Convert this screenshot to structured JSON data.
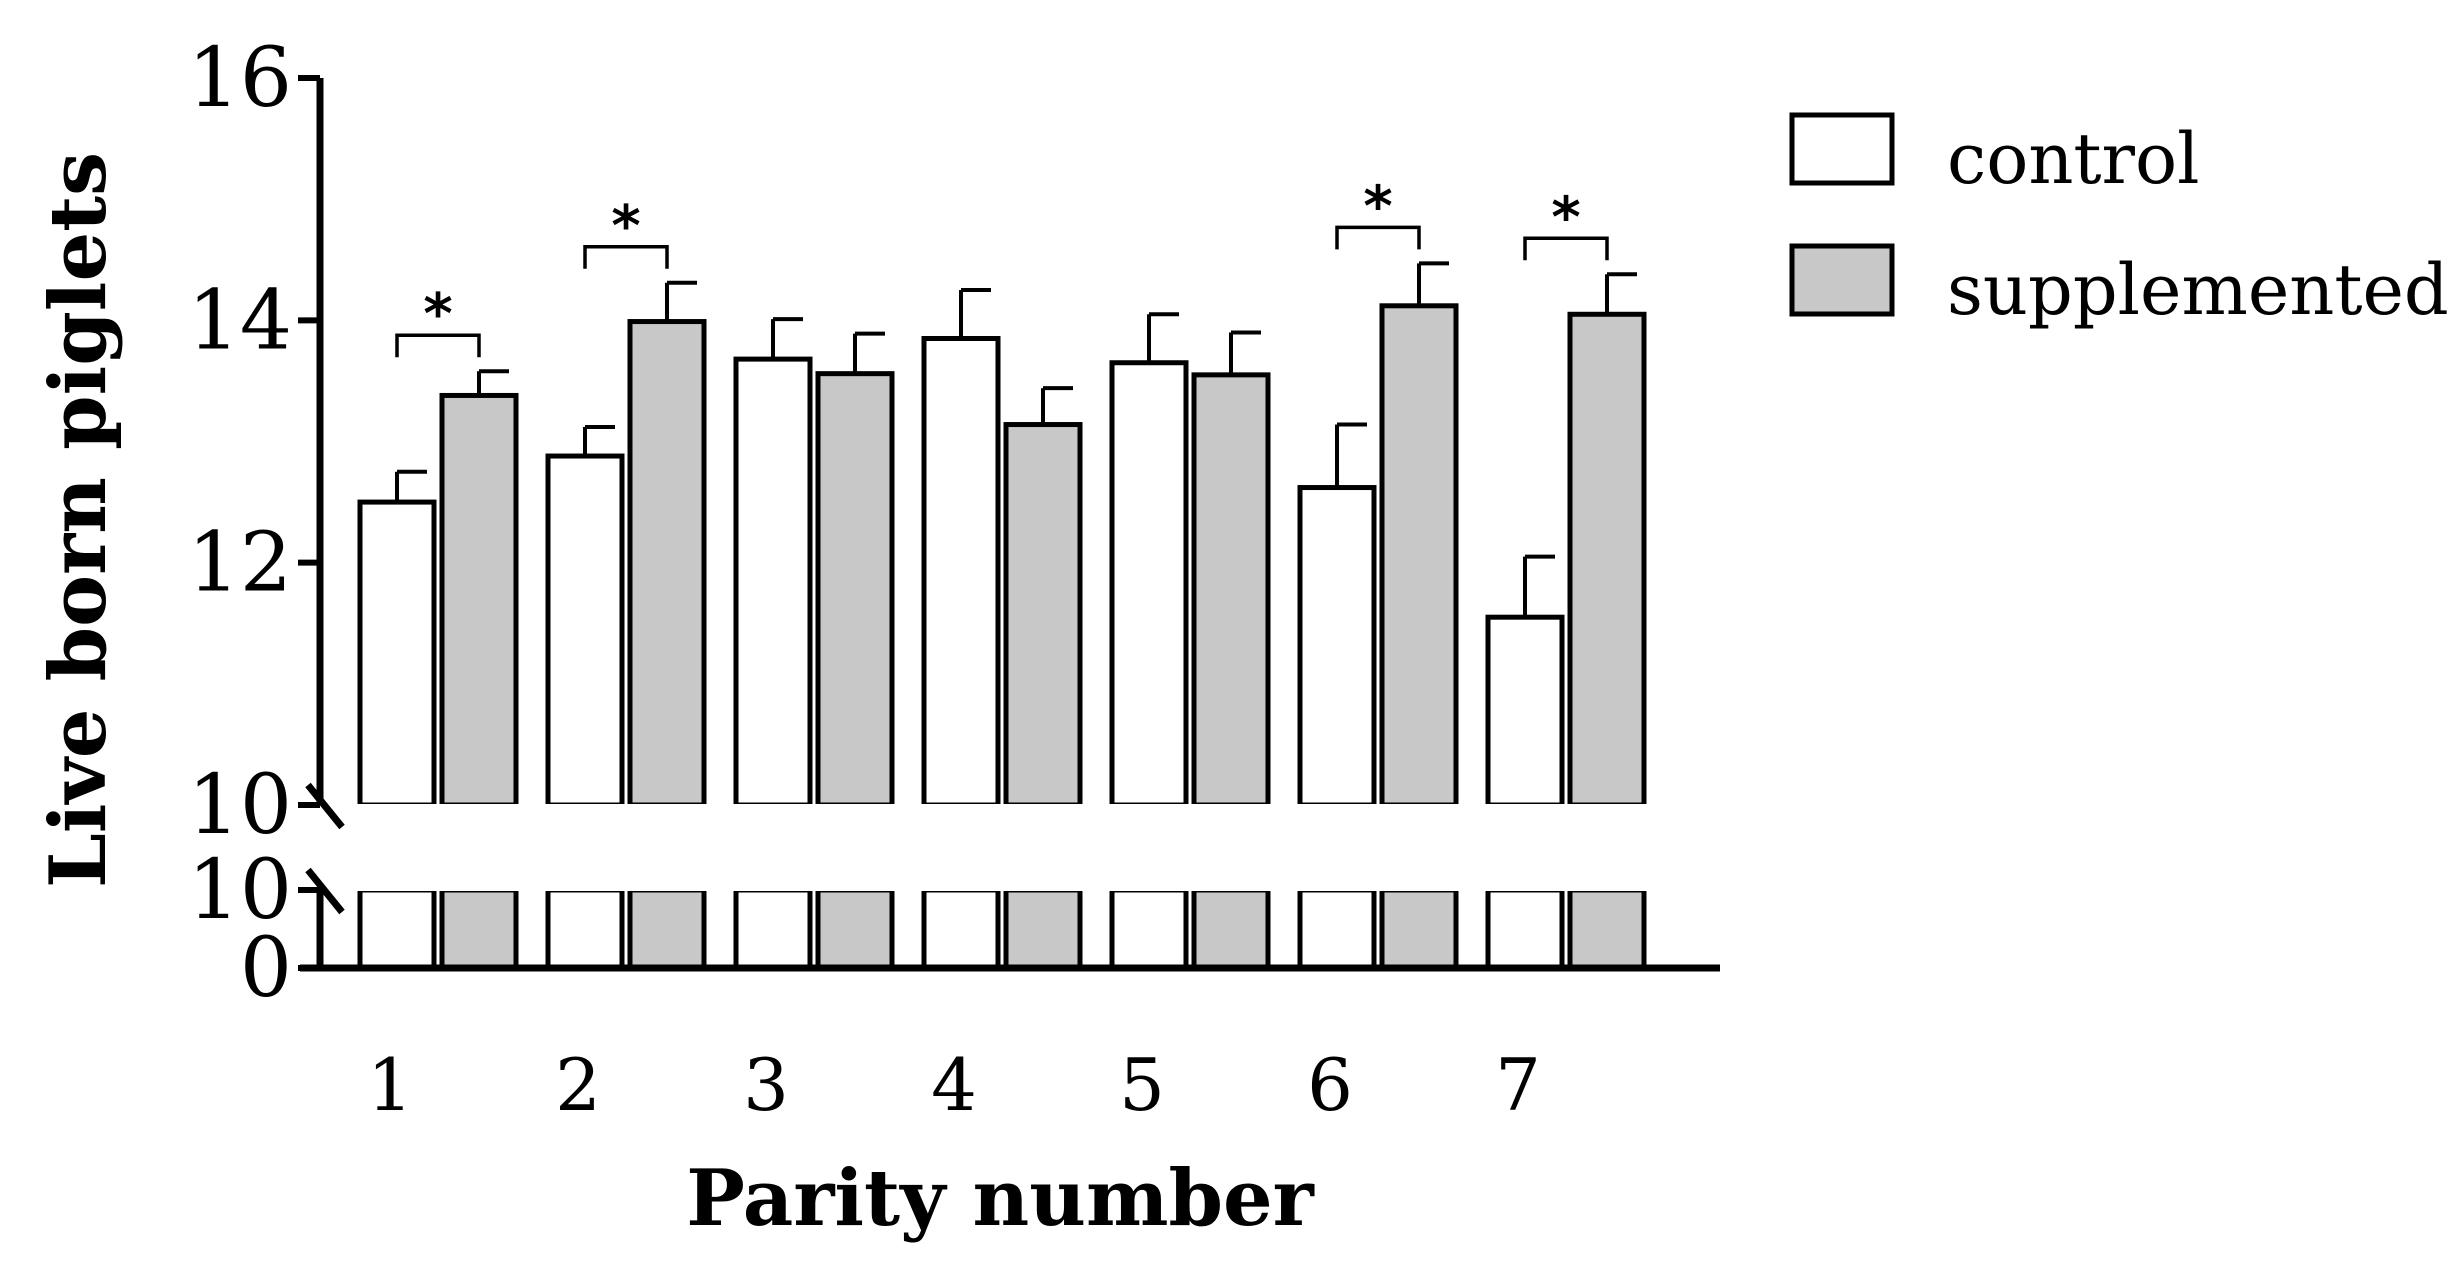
{
  "chart_data": {
    "type": "bar",
    "xlabel": "Parity number",
    "ylabel": "Live born piglets",
    "categories": [
      "1",
      "2",
      "3",
      "4",
      "5",
      "6",
      "7"
    ],
    "series": [
      {
        "name": "control",
        "color": "#ffffff",
        "values": [
          12.5,
          12.88,
          13.68,
          13.85,
          13.65,
          12.62,
          11.55
        ],
        "errors": [
          0.25,
          0.24,
          0.33,
          0.4,
          0.4,
          0.52,
          0.5
        ]
      },
      {
        "name": "supplemented",
        "color": "#c8c8c8",
        "values": [
          13.38,
          13.99,
          13.56,
          13.14,
          13.55,
          14.12,
          14.05
        ],
        "errors": [
          0.2,
          0.32,
          0.33,
          0.3,
          0.35,
          0.35,
          0.33
        ]
      }
    ],
    "yticks_upper": [
      "16",
      "14",
      "12",
      "10"
    ],
    "yticks_lower": [
      "10",
      "0"
    ],
    "ylim_upper": [
      10,
      16
    ],
    "ylim_lower": [
      0,
      10
    ],
    "axis_break": true,
    "significance": [
      {
        "category": "1",
        "label": "*"
      },
      {
        "category": "2",
        "label": "*"
      },
      {
        "category": "6",
        "label": "*"
      },
      {
        "category": "7",
        "label": "*"
      }
    ],
    "legend_position": "top-right",
    "grid": false
  }
}
